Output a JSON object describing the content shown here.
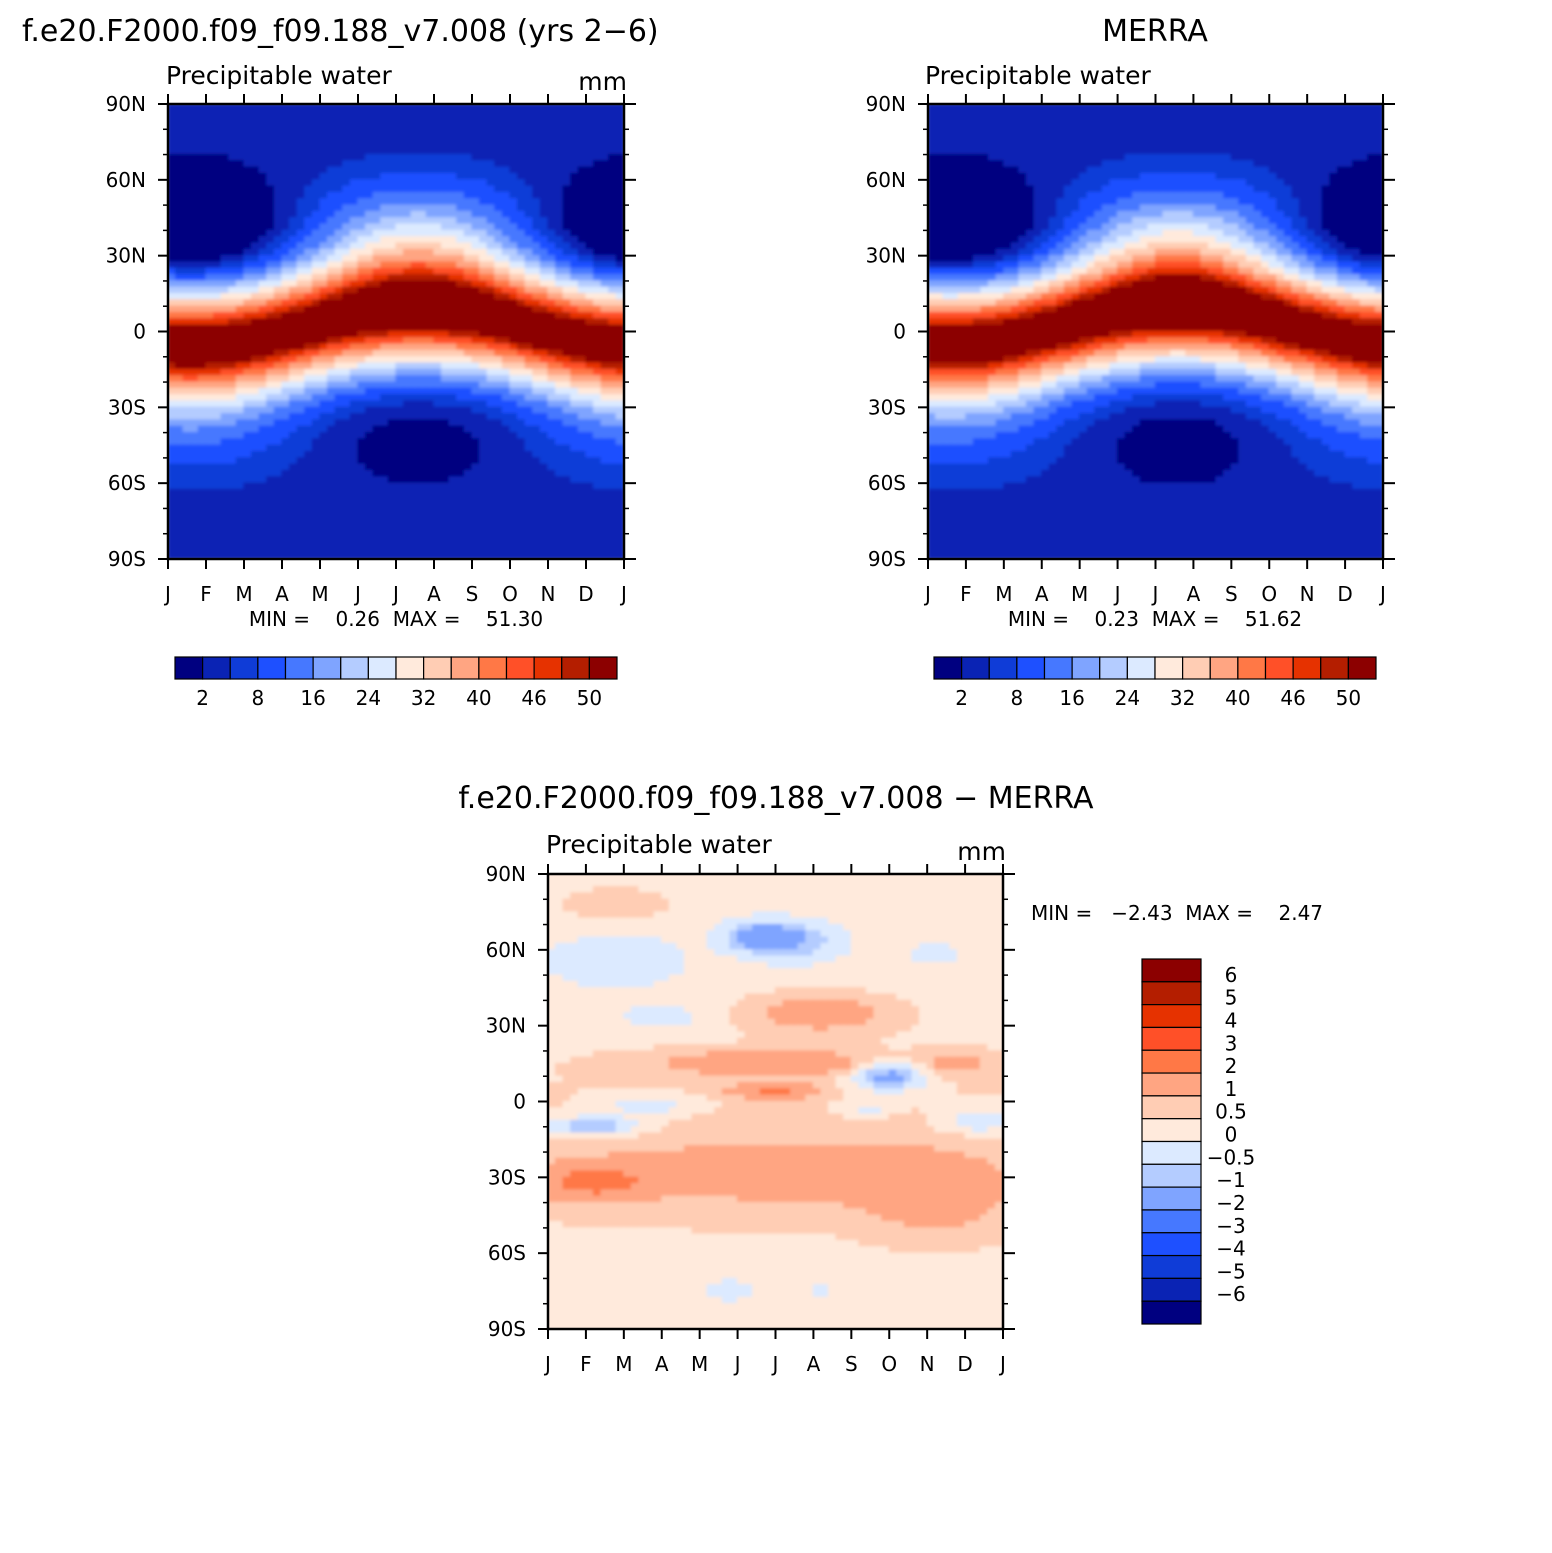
{
  "chart_data": [
    {
      "type": "heatmap",
      "title": "f.e20.F2000.f09_f09.188_v7.008 (yrs 2−6)",
      "subtitle": "Precipitable water",
      "units": "mm",
      "x_tick_labels": [
        "J",
        "F",
        "M",
        "A",
        "M",
        "J",
        "J",
        "A",
        "S",
        "O",
        "N",
        "D",
        "J"
      ],
      "y_tick_labels": [
        "90N",
        "60N",
        "30N",
        "0",
        "30S",
        "60S",
        "90S"
      ],
      "ylim": [
        -90,
        90
      ],
      "stats_text": "MIN =    0.26  MAX =    51.30",
      "min": 0.26,
      "max": 51.3,
      "colorbar_orientation": "horizontal",
      "colorbar_labels": [
        "2",
        "8",
        "16",
        "24",
        "32",
        "40",
        "46",
        "50"
      ],
      "colorbar_colors": [
        "#000080",
        "#0a23b4",
        "#0f3cd7",
        "#1e50ff",
        "#4678ff",
        "#7fa4ff",
        "#b4ccff",
        "#dceaff",
        "#ffeadc",
        "#ffcdb4",
        "#ffa582",
        "#ff7846",
        "#ff5028",
        "#e63200",
        "#b41e00",
        "#8c0000"
      ]
    },
    {
      "type": "heatmap",
      "title": "MERRA",
      "subtitle": "Precipitable water",
      "x_tick_labels": [
        "J",
        "F",
        "M",
        "A",
        "M",
        "J",
        "J",
        "A",
        "S",
        "O",
        "N",
        "D",
        "J"
      ],
      "y_tick_labels": [
        "90N",
        "60N",
        "30N",
        "0",
        "30S",
        "60S",
        "90S"
      ],
      "ylim": [
        -90,
        90
      ],
      "stats_text": "MIN =    0.23  MAX =    51.62",
      "min": 0.23,
      "max": 51.62,
      "colorbar_orientation": "horizontal",
      "colorbar_labels": [
        "2",
        "8",
        "16",
        "24",
        "32",
        "40",
        "46",
        "50"
      ],
      "colorbar_colors": [
        "#000080",
        "#0a23b4",
        "#0f3cd7",
        "#1e50ff",
        "#4678ff",
        "#7fa4ff",
        "#b4ccff",
        "#dceaff",
        "#ffeadc",
        "#ffcdb4",
        "#ffa582",
        "#ff7846",
        "#ff5028",
        "#e63200",
        "#b41e00",
        "#8c0000"
      ]
    },
    {
      "type": "heatmap",
      "title": "f.e20.F2000.f09_f09.188_v7.008 − MERRA",
      "subtitle": "Precipitable water",
      "units": "mm",
      "x_tick_labels": [
        "J",
        "F",
        "M",
        "A",
        "M",
        "J",
        "J",
        "A",
        "S",
        "O",
        "N",
        "D",
        "J"
      ],
      "y_tick_labels": [
        "90N",
        "60N",
        "30N",
        "0",
        "30S",
        "60S",
        "90S"
      ],
      "ylim": [
        -90,
        90
      ],
      "stats_text": "MIN =   −2.43  MAX =    2.47",
      "min": -2.43,
      "max": 2.47,
      "colorbar_orientation": "vertical",
      "colorbar_labels": [
        "6",
        "5",
        "4",
        "3",
        "2",
        "1",
        "0.5",
        "0",
        "−0.5",
        "−1",
        "−2",
        "−3",
        "−4",
        "−5",
        "−6"
      ],
      "colorbar_colors": [
        "#8c0000",
        "#b41e00",
        "#e63200",
        "#ff5028",
        "#ff7846",
        "#ffa582",
        "#ffcdb4",
        "#ffeadc",
        "#dceaff",
        "#b4ccff",
        "#7fa4ff",
        "#4678ff",
        "#1e50ff",
        "#0f3cd7",
        "#0a23b4",
        "#000080"
      ]
    }
  ]
}
